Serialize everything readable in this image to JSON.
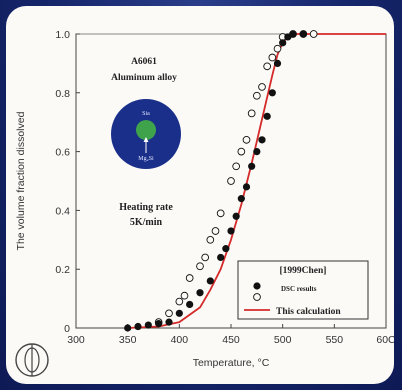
{
  "chart_data": {
    "type": "scatter",
    "xlabel": "Temperature, °C",
    "ylabel": "The volume fraction dissolved",
    "xlim": [
      300,
      600
    ],
    "ylim": [
      0,
      1
    ],
    "xticks": [
      "300",
      "350",
      "400",
      "450",
      "500",
      "550",
      "60C"
    ],
    "yticks": [
      "0",
      "0.2",
      "0.4",
      "0.6",
      "0.8",
      "1.0"
    ],
    "annotations": {
      "alloy_line1": "A6061",
      "alloy_line2": "Aluminum alloy",
      "inset_top": "Sia",
      "inset_bottom": "Mg₂Si",
      "rate_line1": "Heating rate",
      "rate_line2": "5K/min"
    },
    "legend": {
      "title": "[1999Chen]",
      "position": "bottom-right",
      "entries": [
        "DSC results",
        "This calculation"
      ]
    },
    "series": [
      {
        "name": "",
        "marker": "filled-circle",
        "points": [
          [
            350,
            0.0
          ],
          [
            360,
            0.005
          ],
          [
            370,
            0.01
          ],
          [
            380,
            0.015
          ],
          [
            390,
            0.02
          ],
          [
            400,
            0.05
          ],
          [
            410,
            0.08
          ],
          [
            420,
            0.12
          ],
          [
            430,
            0.16
          ],
          [
            440,
            0.24
          ],
          [
            445,
            0.27
          ],
          [
            450,
            0.33
          ],
          [
            455,
            0.38
          ],
          [
            460,
            0.44
          ],
          [
            465,
            0.48
          ],
          [
            470,
            0.55
          ],
          [
            475,
            0.6
          ],
          [
            480,
            0.64
          ],
          [
            485,
            0.72
          ],
          [
            490,
            0.8
          ],
          [
            495,
            0.9
          ],
          [
            500,
            0.97
          ],
          [
            505,
            0.99
          ],
          [
            510,
            1.0
          ],
          [
            520,
            1.0
          ]
        ]
      },
      {
        "name": "",
        "marker": "open-circle",
        "points": [
          [
            380,
            0.02
          ],
          [
            390,
            0.05
          ],
          [
            400,
            0.09
          ],
          [
            405,
            0.11
          ],
          [
            410,
            0.17
          ],
          [
            420,
            0.21
          ],
          [
            425,
            0.24
          ],
          [
            430,
            0.3
          ],
          [
            435,
            0.33
          ],
          [
            440,
            0.39
          ],
          [
            450,
            0.5
          ],
          [
            455,
            0.55
          ],
          [
            460,
            0.6
          ],
          [
            465,
            0.64
          ],
          [
            470,
            0.73
          ],
          [
            475,
            0.79
          ],
          [
            480,
            0.82
          ],
          [
            485,
            0.89
          ],
          [
            490,
            0.92
          ],
          [
            495,
            0.95
          ],
          [
            500,
            0.99
          ],
          [
            510,
            1.0
          ],
          [
            520,
            1.0
          ],
          [
            530,
            1.0
          ]
        ]
      },
      {
        "name": "",
        "marker": "line",
        "color": "#d42a2a",
        "points": [
          [
            350,
            0
          ],
          [
            380,
            0.005
          ],
          [
            400,
            0.02
          ],
          [
            420,
            0.07
          ],
          [
            430,
            0.13
          ],
          [
            440,
            0.2
          ],
          [
            450,
            0.3
          ],
          [
            460,
            0.42
          ],
          [
            470,
            0.56
          ],
          [
            480,
            0.71
          ],
          [
            490,
            0.86
          ],
          [
            495,
            0.93
          ],
          [
            500,
            0.97
          ],
          [
            505,
            0.99
          ],
          [
            510,
            1.0
          ],
          [
            600,
            1.0
          ]
        ]
      }
    ]
  }
}
